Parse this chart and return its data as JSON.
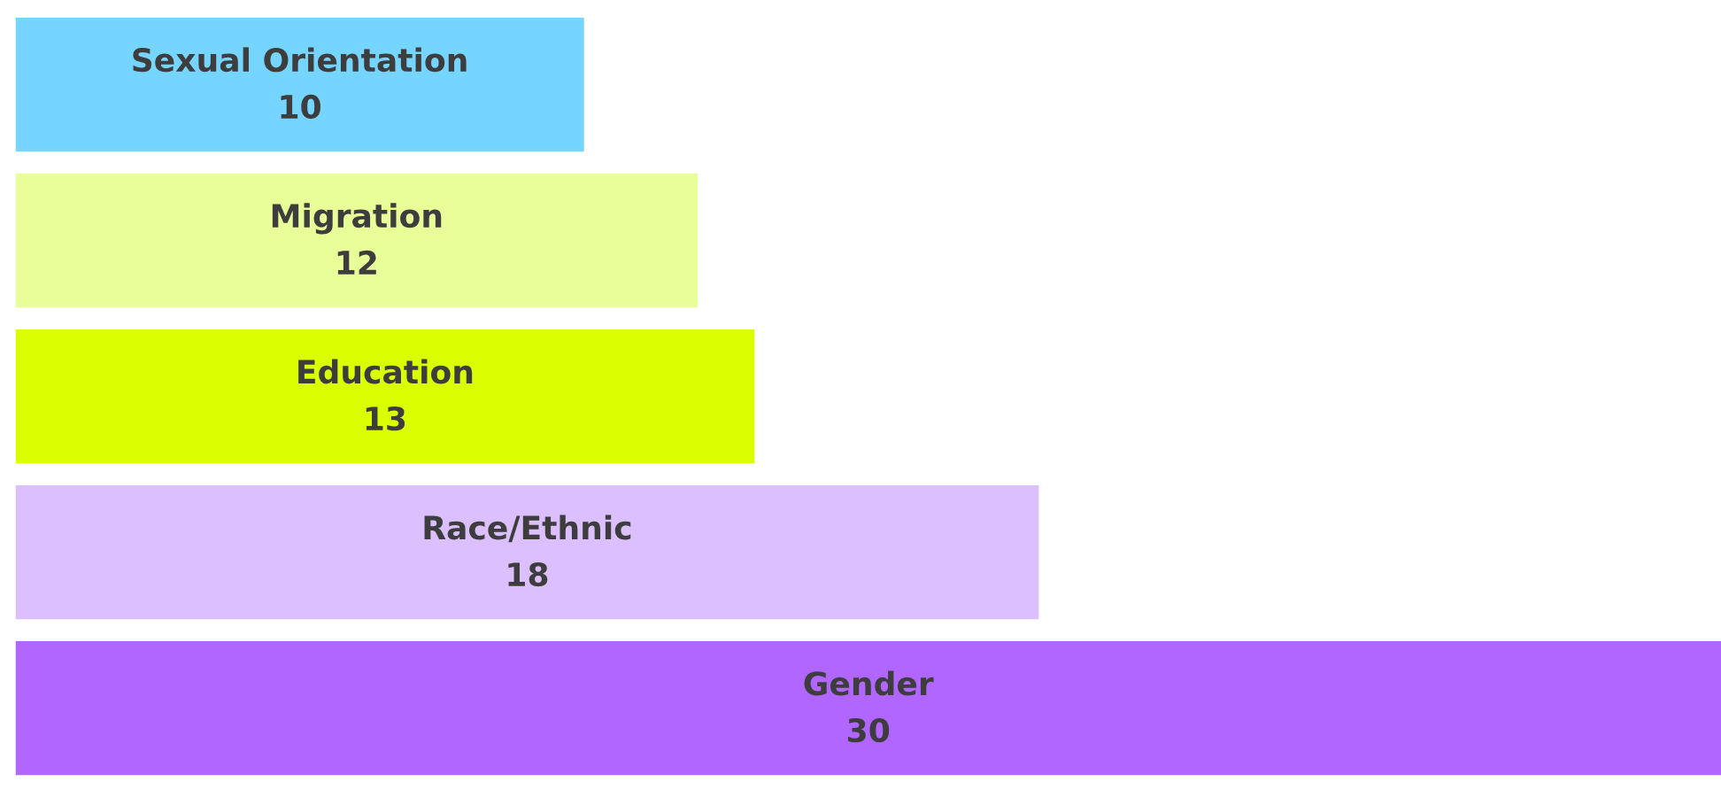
{
  "chart_data": {
    "type": "bar",
    "orientation": "horizontal",
    "categories": [
      "Sexual Orientation",
      "Migration",
      "Education",
      "Race/Ethnic",
      "Gender"
    ],
    "values": [
      10,
      12,
      13,
      18,
      30
    ],
    "colors": [
      "#75d5ff",
      "#e8ff99",
      "#d9ff00",
      "#dbbfff",
      "#b066ff"
    ],
    "data_labels": true,
    "tick_labels": false
  }
}
